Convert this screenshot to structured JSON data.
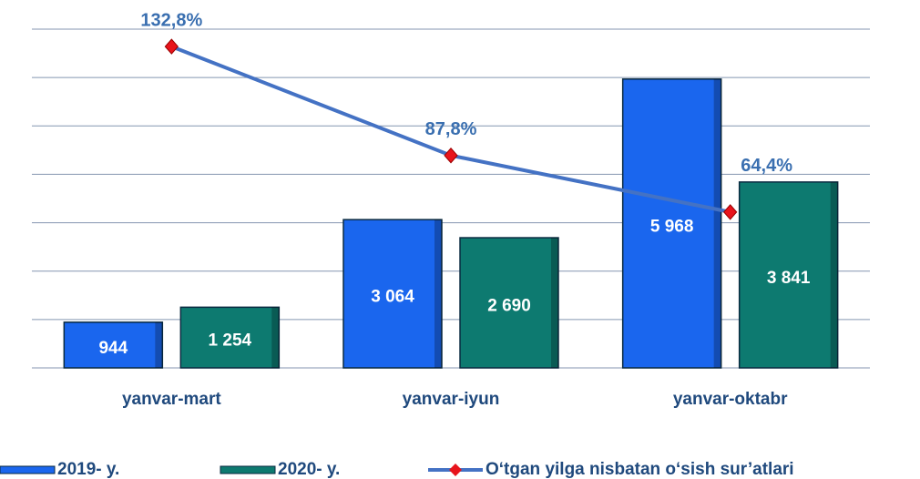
{
  "chart_data": {
    "type": "bar",
    "categories": [
      "yanvar-mart",
      "yanvar-iyun",
      "yanvar-oktabr"
    ],
    "ylim": [
      0,
      7000
    ],
    "yticks": [
      0,
      1000,
      2000,
      3000,
      4000,
      5000,
      6000,
      7000
    ],
    "grid": true,
    "y2lim": [
      0,
      140
    ],
    "series": [
      {
        "name": "2019- y.",
        "type": "bar",
        "color": "#1a66ee",
        "values": [
          944,
          3064,
          5968
        ],
        "value_labels": [
          "944",
          "3 064",
          "5 968"
        ]
      },
      {
        "name": "2020- y.",
        "type": "bar",
        "color": "#0d7a70",
        "values": [
          1254,
          2690,
          3841
        ],
        "value_labels": [
          "1 254",
          "2 690",
          "3 841"
        ]
      },
      {
        "name": "O‘tgan yilga nisbatan o‘sish sur’atlari",
        "type": "line",
        "axis": "y2",
        "color": "#4472c4",
        "marker_color": "#e8141c",
        "values": [
          132.8,
          87.8,
          64.4
        ],
        "value_labels": [
          "132,8%",
          "87,8%",
          "64,4%"
        ]
      }
    ],
    "legend": "bottom"
  }
}
